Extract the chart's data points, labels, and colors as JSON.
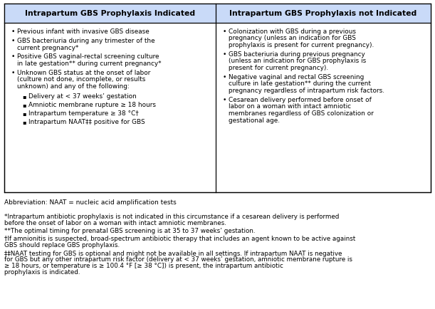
{
  "header_left": "Intrapartum GBS Prophylaxis Indicated",
  "header_right": "Intrapartum GBS Prophylaxis not Indicated",
  "header_bg": "#c9daf8",
  "border_color": "#000000",
  "col_left_bullets": [
    "Previous infant with invasive GBS disease",
    "GBS bacteriuria during any trimester of the\ncurrent pregnancy*",
    "Positive GBS vaginal-rectal screening culture\nin late gestation** during current pregnancy*",
    "Unknown GBS status at the onset of labor\n(culture not done, incomplete, or results\nunknown) and any of the following:"
  ],
  "col_left_sub_bullets": [
    "Delivery at < 37 weeks’ gestation",
    "Amniotic membrane rupture ≥ 18 hours",
    "Intrapartum temperature ≥ 38 °C†",
    "Intrapartum NAAT‡‡ positive for GBS"
  ],
  "col_right_bullets": [
    "Colonization with GBS during a previous\npregnancy (unless an indication for GBS\nprophylaxis is present for current pregnancy).",
    "GBS bacteriuria during previous pregnancy\n(unless an indication for GBS prophylaxis is\npresent for current pregnancy).",
    "Negative vaginal and rectal GBS screening\nculture in late gestation** during the current\npregnancy regardless of intrapartum risk factors.",
    "Cesarean delivery performed before onset of\nlabor on a woman with intact amniotic\nmembranes regardless of GBS colonization or\ngestational age."
  ],
  "abbreviation": "Abbreviation: NAAT = nucleic acid amplification tests",
  "footnotes": [
    "*Intrapartum antibiotic prophylaxis is not indicated in this circumstance if a cesarean delivery is performed\nbefore the onset of labor on a woman with intact amniotic membranes.",
    "**The optimal timing for prenatal GBS screening is at 35 to 37 weeks’ gestation.",
    "†If amnionitis is suspected, broad-spectrum antibiotic therapy that includes an agent known to be active against\nGBS should replace GBS prophylaxis.",
    "‡‡NAAT testing for GBS is optional and might not be available in all settings. If intrapartum NAAT is negative\nfor GBS but any other intrapartum risk factor (delivery at < 37 weeks’ gestation, amniotic membrane rupture is\n≥ 18 hours, or temperature is ≥ 100.4 °F [≥ 38 °C]) is present, the intrapartum antibiotic\nprophylaxis is indicated."
  ],
  "figsize": [
    6.11,
    4.34
  ],
  "dpi": 100
}
